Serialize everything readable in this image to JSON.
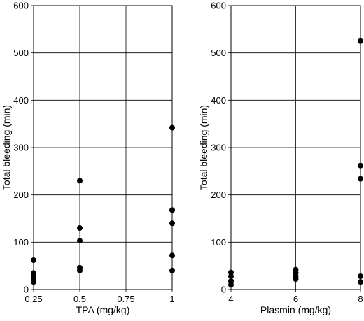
{
  "chart_data": [
    {
      "type": "scatter",
      "title": "",
      "xlabel": "TPA (mg/kg)",
      "ylabel": "Total bleeding (min)",
      "xlim": [
        0.25,
        1
      ],
      "ylim": [
        0,
        600
      ],
      "x_ticks": [
        0.25,
        0.5,
        0.75,
        1
      ],
      "x_tick_labels": [
        "0.25",
        "0.5",
        "0.75",
        "1"
      ],
      "y_ticks": [
        0,
        100,
        200,
        300,
        400,
        500,
        600
      ],
      "y_tick_labels": [
        "0",
        "100",
        "200",
        "300",
        "400",
        "500",
        "600"
      ],
      "grid": true,
      "points": [
        {
          "x": 0.25,
          "y": 62
        },
        {
          "x": 0.25,
          "y": 35
        },
        {
          "x": 0.25,
          "y": 30
        },
        {
          "x": 0.25,
          "y": 22
        },
        {
          "x": 0.25,
          "y": 16
        },
        {
          "x": 0.5,
          "y": 230
        },
        {
          "x": 0.5,
          "y": 130
        },
        {
          "x": 0.5,
          "y": 103
        },
        {
          "x": 0.5,
          "y": 46
        },
        {
          "x": 0.5,
          "y": 40
        },
        {
          "x": 1,
          "y": 342
        },
        {
          "x": 1,
          "y": 168
        },
        {
          "x": 1,
          "y": 140
        },
        {
          "x": 1,
          "y": 72
        },
        {
          "x": 1,
          "y": 40
        }
      ]
    },
    {
      "type": "scatter",
      "title": "",
      "xlabel": "Plasmin (mg/kg)",
      "ylabel": "Total bleeding (min)",
      "xlim": [
        4,
        8
      ],
      "ylim": [
        0,
        600
      ],
      "x_ticks": [
        4,
        6,
        8
      ],
      "x_tick_labels": [
        "4",
        "6",
        "8"
      ],
      "y_ticks": [
        0,
        100,
        200,
        300,
        400,
        500,
        600
      ],
      "y_tick_labels": [
        "0",
        "100",
        "200",
        "300",
        "400",
        "500",
        "600"
      ],
      "grid": true,
      "points": [
        {
          "x": 4,
          "y": 36
        },
        {
          "x": 4,
          "y": 28
        },
        {
          "x": 4,
          "y": 18
        },
        {
          "x": 4,
          "y": 10
        },
        {
          "x": 6,
          "y": 42
        },
        {
          "x": 6,
          "y": 35
        },
        {
          "x": 6,
          "y": 28
        },
        {
          "x": 6,
          "y": 22
        },
        {
          "x": 8,
          "y": 525
        },
        {
          "x": 8,
          "y": 262
        },
        {
          "x": 8,
          "y": 234
        },
        {
          "x": 8,
          "y": 28
        },
        {
          "x": 8,
          "y": 16
        }
      ]
    }
  ]
}
